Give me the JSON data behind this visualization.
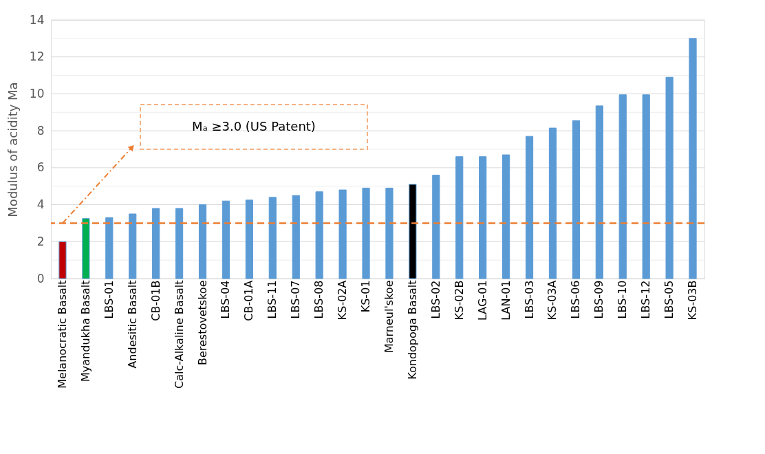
{
  "chart_data": {
    "type": "bar",
    "ylabel": "Modulus of acidity Ma",
    "categories": [
      "Melanocratic Basalt",
      "Myandukha Basalt",
      "LBS-01",
      "Andesitic Basalt",
      "CB-01B",
      "Calc-Alkaline Basalt",
      "Berestovetskoe",
      "LBS-04",
      "CB-01A",
      "LBS-11",
      "LBS-07",
      "LBS-08",
      "KS-02A",
      "KS-01",
      "Marneul'skoe",
      "Kondopoga Basalt",
      "LBS-02",
      "KS-02B",
      "LAG-01",
      "LAN-01",
      "LBS-03",
      "KS-03A",
      "LBS-06",
      "LBS-09",
      "LBS-10",
      "LBS-12",
      "LBS-05",
      "KS-03B"
    ],
    "values": [
      2.0,
      3.25,
      3.3,
      3.5,
      3.8,
      3.8,
      4.0,
      4.2,
      4.25,
      4.4,
      4.5,
      4.7,
      4.8,
      4.9,
      4.9,
      5.1,
      5.6,
      6.6,
      6.6,
      6.7,
      7.7,
      8.15,
      8.55,
      9.35,
      9.95,
      9.95,
      10.9,
      13.0
    ],
    "colors": [
      "#c00000",
      "#00b050",
      "#5b9bd5",
      "#5b9bd5",
      "#5b9bd5",
      "#5b9bd5",
      "#5b9bd5",
      "#5b9bd5",
      "#5b9bd5",
      "#5b9bd5",
      "#5b9bd5",
      "#5b9bd5",
      "#5b9bd5",
      "#5b9bd5",
      "#5b9bd5",
      "#000000",
      "#5b9bd5",
      "#5b9bd5",
      "#5b9bd5",
      "#5b9bd5",
      "#5b9bd5",
      "#5b9bd5",
      "#5b9bd5",
      "#5b9bd5",
      "#5b9bd5",
      "#5b9bd5",
      "#5b9bd5",
      "#5b9bd5"
    ],
    "ylim": [
      0,
      14
    ],
    "yticks": [
      0,
      {
        "value": 1,
        "label": null
      },
      2,
      {
        "value": 3,
        "label": null
      },
      4,
      {
        "value": 5,
        "label": null
      },
      6,
      {
        "value": 7,
        "label": null
      },
      8,
      {
        "value": 9,
        "label": null
      },
      10,
      {
        "value": 11,
        "label": null
      },
      12,
      {
        "value": 13,
        "label": null
      },
      14
    ],
    "grid": "y",
    "ref_lines": [
      {
        "axis": "y",
        "value": 3.0,
        "color": "#ed7d31",
        "line_style": "dashed"
      }
    ],
    "annotations": [
      "Mₐ ≥3.0 (US Patent)"
    ]
  }
}
